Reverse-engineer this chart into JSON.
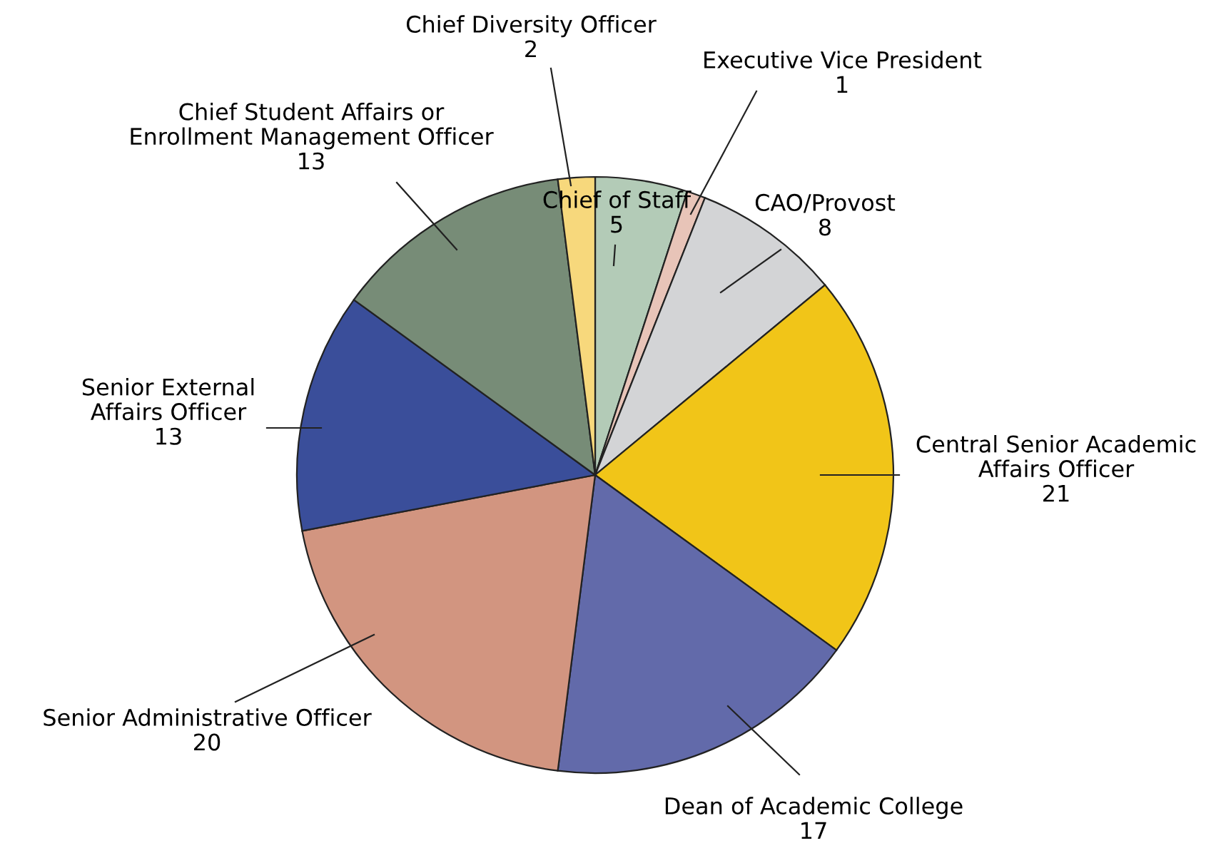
{
  "chart_data": {
    "type": "pie",
    "categories": [
      "Chief of Staff",
      "Executive Vice President",
      "CAO/Provost",
      "Central Senior Academic\nAffairs Officer",
      "Dean of Academic College",
      "Senior Administrative Officer",
      "Senior External\nAffairs Officer",
      "Chief Student Affairs or\nEnrollment Management Officer",
      "Chief Diversity Officer"
    ],
    "values": [
      5,
      1,
      8,
      21,
      17,
      20,
      13,
      13,
      2
    ],
    "colors": [
      "#b3cbb7",
      "#e8c4b8",
      "#d3d4d6",
      "#f1c518",
      "#626aaa",
      "#d29580",
      "#3a4e9a",
      "#778c77",
      "#f7d87c"
    ],
    "data_labels": true
  }
}
